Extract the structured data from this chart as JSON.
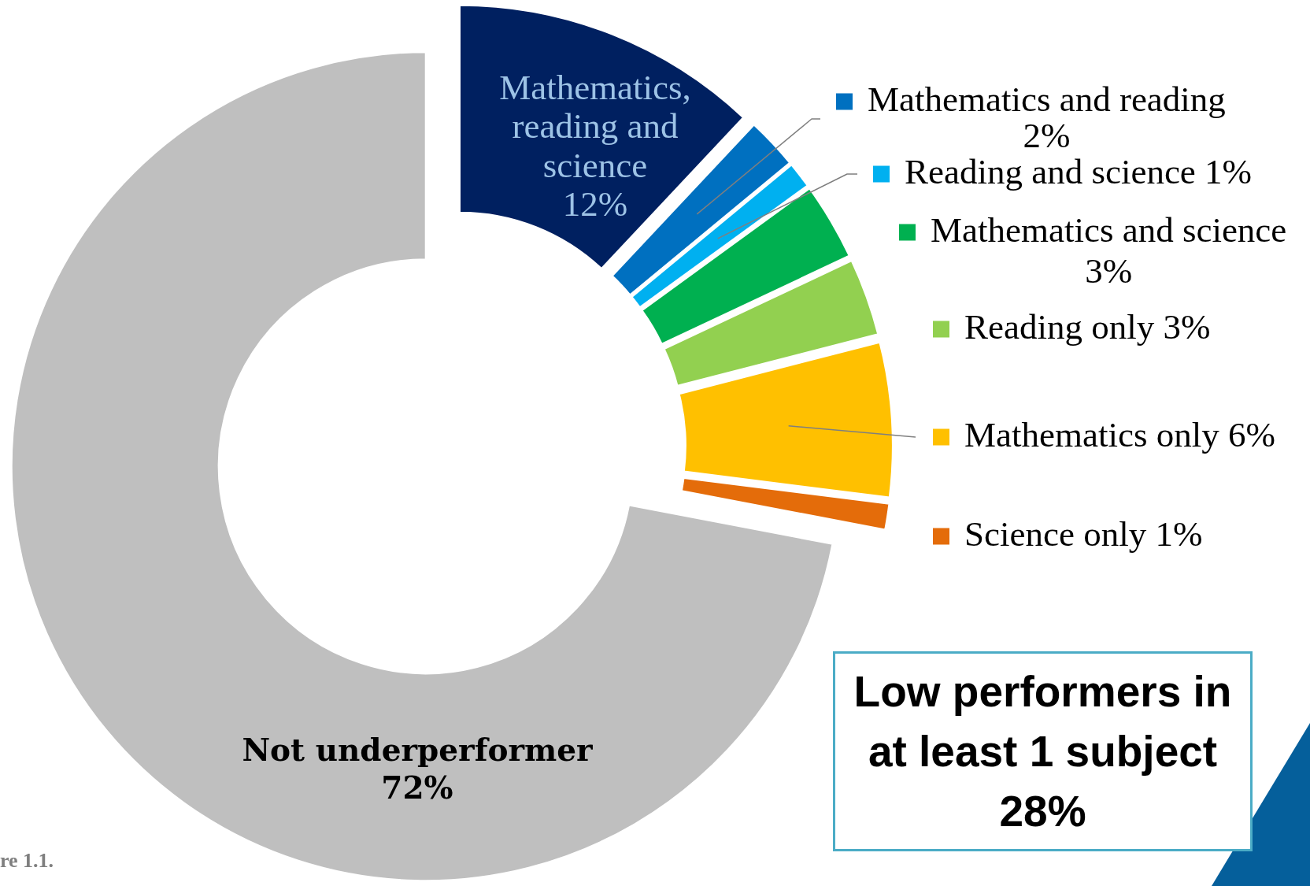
{
  "chart_data": {
    "type": "donut",
    "categories": [
      "Mathematics, reading and science",
      "Mathematics and reading",
      "Reading and science",
      "Mathematics and science",
      "Reading only",
      "Mathematics only",
      "Science only",
      "Not underperformer"
    ],
    "values": [
      12,
      2,
      1,
      3,
      3,
      6,
      1,
      72
    ],
    "value_labels": [
      "12%",
      "2%",
      "1%",
      "3%",
      "3%",
      "6%",
      "1%",
      "72%"
    ],
    "colors": [
      "#002060",
      "#0070c0",
      "#00b0f0",
      "#00b050",
      "#92d050",
      "#ffc000",
      "#e46c0a",
      "#bfbfbf"
    ],
    "legend": "right",
    "annotations": [
      "Low performers in at least 1 subject 28%",
      "re 1.1."
    ]
  }
}
